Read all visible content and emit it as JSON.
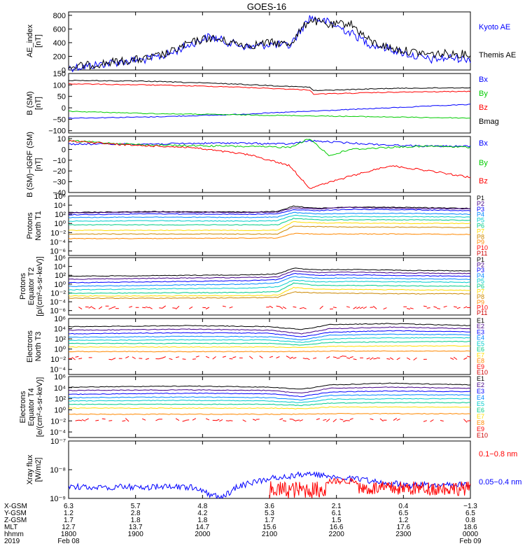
{
  "title": "GOES-16",
  "chart_data": [
    {
      "type": "line",
      "panel": "ae-index",
      "ylabel": [
        "AE_index",
        "[nT]"
      ],
      "ylim": [
        0,
        850
      ],
      "yticks": [
        "0",
        "200",
        "400",
        "600",
        "800"
      ],
      "ytick_values": [
        0,
        200,
        400,
        600,
        800
      ],
      "series": [
        {
          "name": "Kyoto AE",
          "color": "#0000ff",
          "x": [
            0,
            0.05,
            0.1,
            0.15,
            0.2,
            0.25,
            0.3,
            0.35,
            0.4,
            0.45,
            0.5,
            0.55,
            0.6,
            0.65,
            0.7,
            0.75,
            0.8,
            0.85,
            0.9,
            0.95,
            1
          ],
          "values": [
            30,
            60,
            100,
            130,
            160,
            230,
            370,
            490,
            400,
            330,
            380,
            350,
            770,
            690,
            550,
            380,
            310,
            220,
            150,
            180,
            160
          ]
        },
        {
          "name": "Themis AE",
          "color": "#000000",
          "x": [
            0,
            0.05,
            0.1,
            0.15,
            0.2,
            0.25,
            0.3,
            0.35,
            0.4,
            0.45,
            0.5,
            0.55,
            0.6,
            0.65,
            0.7,
            0.75,
            0.8,
            0.85,
            0.9,
            0.95,
            1
          ],
          "values": [
            40,
            70,
            110,
            140,
            170,
            250,
            390,
            470,
            410,
            360,
            400,
            380,
            740,
            650,
            690,
            420,
            320,
            270,
            230,
            240,
            230
          ]
        }
      ]
    },
    {
      "type": "line",
      "panel": "b-sm",
      "ylabel": [
        "B (SM)",
        "[nT]"
      ],
      "ylim": [
        -110,
        150
      ],
      "yticks": [
        "150",
        "100",
        "50",
        "0",
        "−50",
        "−100"
      ],
      "ytick_values": [
        150,
        100,
        50,
        0,
        -50,
        -100
      ],
      "series": [
        {
          "name": "Bx",
          "color": "#0000ff",
          "x": [
            0,
            0.2,
            0.4,
            0.6,
            0.8,
            1
          ],
          "values": [
            -45,
            -40,
            -30,
            -15,
            0,
            15
          ]
        },
        {
          "name": "By",
          "color": "#00cc00",
          "x": [
            0,
            0.2,
            0.4,
            0.6,
            0.8,
            1
          ],
          "values": [
            -15,
            -25,
            -30,
            -35,
            -40,
            -45
          ]
        },
        {
          "name": "Bz",
          "color": "#ff0000",
          "x": [
            0,
            0.2,
            0.4,
            0.6,
            0.61,
            0.8,
            1
          ],
          "values": [
            105,
            100,
            92,
            78,
            60,
            68,
            72
          ]
        },
        {
          "name": "Bmag",
          "color": "#000000",
          "x": [
            0,
            0.2,
            0.4,
            0.6,
            0.61,
            0.8,
            1
          ],
          "values": [
            120,
            116,
            105,
            90,
            75,
            85,
            88
          ]
        }
      ]
    },
    {
      "type": "line",
      "panel": "b-sm-igrf",
      "ylabel": [
        "B (SM)−IGRF (SM)",
        "[nT]"
      ],
      "ylim": [
        -40,
        12
      ],
      "yticks": [
        "10",
        "0",
        "−10",
        "−20",
        "−30",
        "−40"
      ],
      "ytick_values": [
        10,
        0,
        -10,
        -20,
        -30,
        -40
      ],
      "series": [
        {
          "name": "Bx",
          "color": "#0000ff",
          "x": [
            0,
            0.2,
            0.4,
            0.55,
            0.6,
            0.7,
            0.8,
            0.9,
            1
          ],
          "values": [
            5,
            5,
            6,
            5,
            8,
            6,
            4,
            3,
            3
          ]
        },
        {
          "name": "By",
          "color": "#00cc00",
          "x": [
            0,
            0.2,
            0.4,
            0.55,
            0.6,
            0.65,
            0.7,
            0.8,
            0.9,
            1
          ],
          "values": [
            8,
            4,
            3,
            2,
            10,
            -6,
            0,
            2,
            3,
            2
          ]
        },
        {
          "name": "Bz",
          "color": "#ff0000",
          "x": [
            0,
            0.15,
            0.3,
            0.45,
            0.55,
            0.6,
            0.7,
            0.8,
            0.9,
            1
          ],
          "values": [
            8,
            4,
            2,
            -5,
            -15,
            -36,
            -25,
            -15,
            -20,
            -26
          ]
        }
      ]
    },
    {
      "type": "line",
      "panel": "protons-north-t1",
      "ylabel": [
        "Protons",
        "North T1"
      ],
      "yticks": [
        "10⁶",
        "10⁴",
        "10²",
        "10⁰",
        "10⁻²",
        "10⁻⁴",
        "10⁻⁶"
      ],
      "log_ylim": [
        -7,
        6
      ],
      "legend": [
        "P1",
        "P2",
        "P3",
        "P4",
        "P5",
        "P6",
        "P7",
        "P8",
        "P9",
        "P10",
        "P11"
      ],
      "legend_colors": [
        "#000000",
        "#440088",
        "#0000ff",
        "#0088ff",
        "#00cccc",
        "#00cc88",
        "#ffdd00",
        "#cc8800",
        "#ff8800",
        "#ff0000",
        "#cc0000"
      ]
    },
    {
      "type": "line",
      "panel": "protons-equator-t2",
      "ylabel": [
        "Protons",
        "Equator T2",
        "[p/(cm²-s-sr-keV)]"
      ],
      "yticks": [
        "10⁶",
        "10⁴",
        "10²",
        "10⁰",
        "10⁻²",
        "10⁻⁴",
        "10⁻⁶"
      ],
      "log_ylim": [
        -7,
        6
      ],
      "legend": [
        "P1",
        "P2",
        "P3",
        "P4",
        "P5",
        "P6",
        "P7",
        "P8",
        "P9",
        "P10",
        "P11"
      ],
      "legend_colors": [
        "#000000",
        "#440088",
        "#0000ff",
        "#0088ff",
        "#00cccc",
        "#00cc88",
        "#ffdd00",
        "#cc8800",
        "#ff8800",
        "#ff0000",
        "#cc0000"
      ]
    },
    {
      "type": "line",
      "panel": "electrons-north-t3",
      "ylabel": [
        "Electrons",
        "North T3"
      ],
      "yticks": [
        "10⁶",
        "10⁴",
        "10²",
        "10⁰",
        "10⁻²",
        "10⁻⁴"
      ],
      "log_ylim": [
        -5,
        6
      ],
      "legend": [
        "E1",
        "E2",
        "E3",
        "E4",
        "E5",
        "E6",
        "E7",
        "E8",
        "E9",
        "E10"
      ],
      "legend_colors": [
        "#000000",
        "#440088",
        "#0000ff",
        "#0088ff",
        "#00cccc",
        "#00cc88",
        "#ffdd00",
        "#ff8800",
        "#ff0000",
        "#cc0000"
      ]
    },
    {
      "type": "line",
      "panel": "electrons-equator-t4",
      "ylabel": [
        "Electrons",
        "Equator T4",
        "[e/(cm²-s-sr-keV)]"
      ],
      "yticks": [
        "10⁶",
        "10⁴",
        "10²",
        "10⁰",
        "10⁻²",
        "10⁻⁴"
      ],
      "log_ylim": [
        -5,
        6
      ],
      "legend": [
        "E1",
        "E2",
        "E3",
        "E4",
        "E5",
        "E6",
        "E7",
        "E8",
        "E9",
        "E10"
      ],
      "legend_colors": [
        "#000000",
        "#440088",
        "#0000ff",
        "#0088ff",
        "#00cccc",
        "#00cc88",
        "#ffdd00",
        "#ff8800",
        "#ff0000",
        "#cc0000"
      ]
    },
    {
      "type": "line",
      "panel": "xray-flux",
      "ylabel": [
        "Xray flux",
        "[W/m2]"
      ],
      "yticks": [
        "10⁻⁷",
        "10⁻⁸",
        "10⁻⁹"
      ],
      "log_ylim": [
        -9,
        -7
      ],
      "series": [
        {
          "name": "0.1−0.8 nm",
          "color": "#ff0000"
        },
        {
          "name": "0.05−0.4 nm",
          "color": "#0000ff"
        }
      ]
    }
  ],
  "x_axis": {
    "row_labels": [
      "X-GSM",
      "Y-GSM",
      "Z-GSM",
      "MLT",
      "hhmm",
      "2019"
    ],
    "columns": [
      {
        "values": [
          "6.3",
          "1.2",
          "1.7",
          "12.7",
          "1800"
        ],
        "date": "Feb 08"
      },
      {
        "values": [
          "5.7",
          "2.8",
          "1.8",
          "13.7",
          "1900"
        ]
      },
      {
        "values": [
          "4.8",
          "4.2",
          "1.8",
          "14.7",
          "2000"
        ]
      },
      {
        "values": [
          "3.6",
          "5.3",
          "1.7",
          "15.6",
          "2100"
        ]
      },
      {
        "values": [
          "2.1",
          "6.1",
          "1.5",
          "16.6",
          "2200"
        ]
      },
      {
        "values": [
          "0.4",
          "6.5",
          "1.2",
          "17.6",
          "2300"
        ]
      },
      {
        "values": [
          "−1.3",
          "6.5",
          "0.8",
          "18.6",
          "0000"
        ],
        "date": "Feb 09"
      }
    ]
  }
}
